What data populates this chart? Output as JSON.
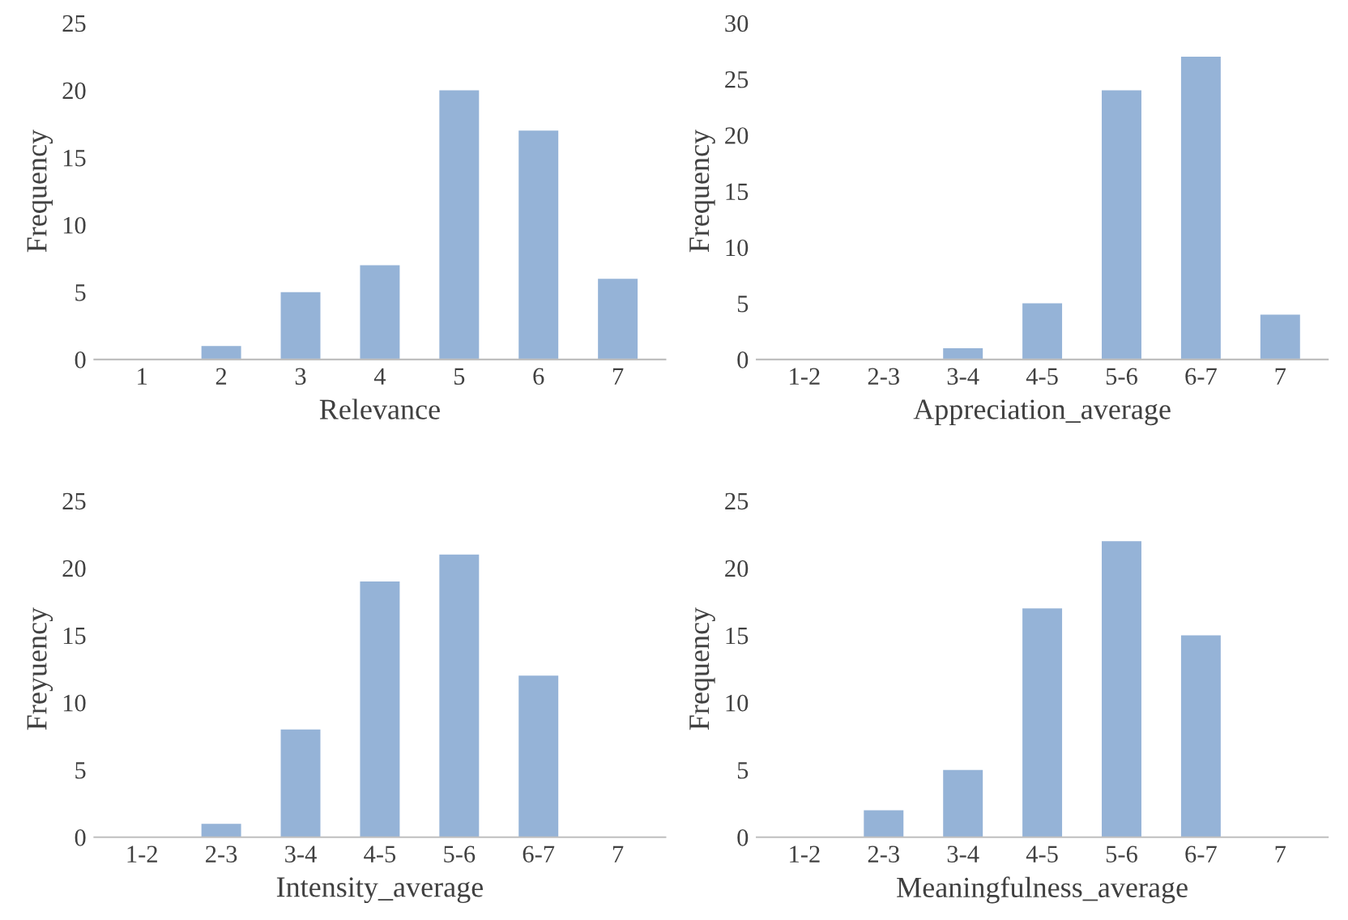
{
  "chart_data": [
    {
      "type": "bar",
      "xlabel": "Relevance",
      "ylabel": "Frequency",
      "categories": [
        "1",
        "2",
        "3",
        "4",
        "5",
        "6",
        "7"
      ],
      "values": [
        0,
        1,
        5,
        7,
        20,
        17,
        6
      ],
      "color": "#95b3d7",
      "ylim": [
        0,
        25
      ],
      "yticks": [
        0,
        5,
        10,
        15,
        20,
        25
      ],
      "grid": false,
      "legend": false
    },
    {
      "type": "bar",
      "xlabel": "Appreciation_average",
      "ylabel": "Frequency",
      "categories": [
        "1-2",
        "2-3",
        "3-4",
        "4-5",
        "5-6",
        "6-7",
        "7"
      ],
      "values": [
        0,
        0,
        1,
        5,
        24,
        27,
        4
      ],
      "color": "#95b3d7",
      "ylim": [
        0,
        30
      ],
      "yticks": [
        0,
        5,
        10,
        15,
        20,
        25,
        30
      ],
      "grid": false,
      "legend": false
    },
    {
      "type": "bar",
      "xlabel": "Intensity_average",
      "ylabel": "Freyuency",
      "categories": [
        "1-2",
        "2-3",
        "3-4",
        "4-5",
        "5-6",
        "6-7",
        "7"
      ],
      "values": [
        0,
        1,
        8,
        19,
        21,
        12,
        0
      ],
      "color": "#95b3d7",
      "ylim": [
        0,
        25
      ],
      "yticks": [
        0,
        5,
        10,
        15,
        20,
        25
      ],
      "grid": false,
      "legend": false
    },
    {
      "type": "bar",
      "xlabel": "Meaningfulness_average",
      "ylabel": "Frequency",
      "categories": [
        "1-2",
        "2-3",
        "3-4",
        "4-5",
        "5-6",
        "6-7",
        "7"
      ],
      "values": [
        0,
        2,
        5,
        17,
        22,
        15,
        0
      ],
      "color": "#95b3d7",
      "ylim": [
        0,
        25
      ],
      "yticks": [
        0,
        5,
        10,
        15,
        20,
        25
      ],
      "grid": false,
      "legend": false
    }
  ]
}
